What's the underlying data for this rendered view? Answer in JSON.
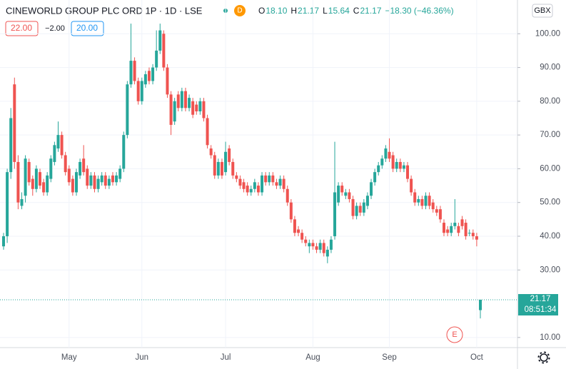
{
  "chart_data": {
    "type": "candlestick",
    "title": "CINEWORLD GROUP PLC ORD 1P · 1D · LSE",
    "interval_badge": "D",
    "ohlc_letters": [
      "O",
      "H",
      "L",
      "C"
    ],
    "ohlc_printed": [
      "18.10",
      "21.17",
      "15.64",
      "21.17"
    ],
    "change_printed": "−18.30 (−46.36%)",
    "buttons": [
      "22.00",
      "−2.00",
      "20.00"
    ],
    "currency": "GBX",
    "last_price_label": "21.17",
    "countdown": "08:51:34",
    "event_badge": "E",
    "up_color": "#26a69a",
    "down_color": "#ef5350",
    "ohlc": [
      [
        37,
        41,
        36,
        40
      ],
      [
        40,
        60,
        38,
        59
      ],
      [
        59,
        78,
        57,
        75
      ],
      [
        85,
        87,
        60,
        62
      ],
      [
        62,
        64,
        48,
        50
      ],
      [
        49,
        53,
        48,
        51
      ],
      [
        52,
        64,
        50,
        63
      ],
      [
        62,
        63,
        55,
        56
      ],
      [
        57,
        58,
        52,
        54
      ],
      [
        54,
        61,
        53,
        60
      ],
      [
        59,
        60,
        54,
        55
      ],
      [
        56,
        57,
        52,
        53
      ],
      [
        53,
        59,
        52,
        58
      ],
      [
        57,
        64,
        56,
        63
      ],
      [
        62,
        68,
        61,
        67
      ],
      [
        66,
        74,
        65,
        70
      ],
      [
        70,
        71,
        63,
        64
      ],
      [
        64,
        65,
        58,
        59
      ],
      [
        60,
        61,
        55,
        56
      ],
      [
        57,
        58,
        52,
        53
      ],
      [
        53,
        60,
        52,
        59
      ],
      [
        58,
        63,
        57,
        62
      ],
      [
        63,
        67,
        58,
        59
      ],
      [
        60,
        61,
        54,
        55
      ],
      [
        55,
        59,
        54,
        58
      ],
      [
        58,
        59,
        53,
        54
      ],
      [
        54,
        58,
        53,
        57
      ],
      [
        56,
        59,
        55,
        58
      ],
      [
        58,
        59,
        54,
        55
      ],
      [
        55,
        58,
        54,
        57
      ],
      [
        58,
        59,
        55,
        56
      ],
      [
        56,
        59,
        55,
        58
      ],
      [
        57,
        61,
        56,
        60
      ],
      [
        60,
        71,
        59,
        70
      ],
      [
        70,
        86,
        69,
        85
      ],
      [
        85,
        103,
        84,
        92
      ],
      [
        92,
        93,
        85,
        86
      ],
      [
        86,
        87,
        79,
        80
      ],
      [
        80,
        87,
        79,
        86
      ],
      [
        85,
        89,
        84,
        88
      ],
      [
        89,
        90,
        85,
        86
      ],
      [
        86,
        91,
        85,
        90
      ],
      [
        90,
        101,
        89,
        95
      ],
      [
        95,
        103,
        94,
        101
      ],
      [
        100,
        101,
        89,
        90
      ],
      [
        90,
        91,
        81,
        82
      ],
      [
        82,
        83,
        70,
        73
      ],
      [
        74,
        81,
        73,
        80
      ],
      [
        82,
        83,
        77,
        78
      ],
      [
        78,
        84,
        77,
        83
      ],
      [
        83,
        84,
        77,
        78
      ],
      [
        78,
        82,
        77,
        81
      ],
      [
        80,
        81,
        75,
        76
      ],
      [
        79,
        80,
        76,
        77
      ],
      [
        77,
        81,
        76,
        80
      ],
      [
        80,
        81,
        74,
        75
      ],
      [
        75,
        76,
        66,
        67
      ],
      [
        66,
        67,
        63,
        64
      ],
      [
        64,
        65,
        57,
        58
      ],
      [
        58,
        63,
        57,
        62
      ],
      [
        62,
        63,
        57,
        58
      ],
      [
        59,
        68,
        58,
        65
      ],
      [
        66,
        67,
        61,
        62
      ],
      [
        62,
        63,
        57,
        58
      ],
      [
        58,
        59,
        56,
        57
      ],
      [
        57,
        58,
        54,
        55
      ],
      [
        56,
        57,
        53,
        54
      ],
      [
        55,
        56,
        52,
        53
      ],
      [
        53,
        55,
        52,
        54
      ],
      [
        54,
        57,
        53,
        56
      ],
      [
        55,
        56,
        52,
        53
      ],
      [
        53,
        59,
        52,
        58
      ],
      [
        58,
        59,
        55,
        56
      ],
      [
        56,
        59,
        55,
        58
      ],
      [
        58,
        59,
        55,
        56
      ],
      [
        56,
        57,
        54,
        55
      ],
      [
        55,
        58,
        54,
        57
      ],
      [
        57,
        58,
        53,
        54
      ],
      [
        54,
        55,
        49,
        50
      ],
      [
        50,
        51,
        44,
        45
      ],
      [
        45,
        46,
        40,
        41
      ],
      [
        42,
        43,
        40,
        41
      ],
      [
        41,
        42,
        38,
        39
      ],
      [
        39,
        40,
        37,
        38
      ],
      [
        37,
        39,
        35,
        38
      ],
      [
        38,
        39,
        36,
        37
      ],
      [
        37,
        38,
        35,
        36
      ],
      [
        36,
        39,
        35,
        38
      ],
      [
        38,
        39,
        34,
        35
      ],
      [
        34,
        37,
        32,
        36
      ],
      [
        36,
        40,
        35,
        39
      ],
      [
        40,
        68,
        39,
        53
      ],
      [
        50,
        56,
        49,
        55
      ],
      [
        55,
        56,
        52,
        53
      ],
      [
        52,
        54,
        51,
        53
      ],
      [
        53,
        54,
        50,
        51
      ],
      [
        51,
        52,
        45,
        46
      ],
      [
        46,
        50,
        45,
        49
      ],
      [
        49,
        50,
        46,
        47
      ],
      [
        47,
        51,
        46,
        50
      ],
      [
        49,
        53,
        48,
        52
      ],
      [
        52,
        57,
        51,
        56
      ],
      [
        56,
        60,
        55,
        59
      ],
      [
        59,
        62,
        58,
        61
      ],
      [
        61,
        64,
        60,
        63
      ],
      [
        63,
        67,
        62,
        66
      ],
      [
        65,
        69,
        62,
        63
      ],
      [
        64,
        65,
        59,
        60
      ],
      [
        60,
        63,
        59,
        62
      ],
      [
        62,
        63,
        59,
        60
      ],
      [
        60,
        62,
        59,
        61
      ],
      [
        61,
        62,
        56,
        57
      ],
      [
        57,
        58,
        52,
        53
      ],
      [
        53,
        54,
        49,
        50
      ],
      [
        50,
        52,
        49,
        51
      ],
      [
        51,
        52,
        48,
        49
      ],
      [
        49,
        53,
        48,
        52
      ],
      [
        52,
        53,
        48,
        49
      ],
      [
        50,
        51,
        47,
        48
      ],
      [
        48,
        49,
        46,
        47
      ],
      [
        48,
        49,
        44,
        45
      ],
      [
        44,
        45,
        40,
        41
      ],
      [
        42,
        43,
        40,
        41
      ],
      [
        41,
        44,
        40,
        43
      ],
      [
        43,
        51,
        42,
        44
      ],
      [
        43,
        44,
        40,
        41
      ],
      [
        45,
        46,
        42,
        43
      ],
      [
        44,
        45,
        39,
        40
      ],
      [
        41,
        42,
        40,
        41
      ],
      [
        41,
        42,
        39,
        40
      ],
      [
        40,
        41,
        37,
        39
      ],
      [
        18.1,
        21.17,
        15.64,
        21.17
      ]
    ],
    "xticks": [
      {
        "value": 18,
        "label": "May"
      },
      {
        "value": 38,
        "label": "Jun"
      },
      {
        "value": 61,
        "label": "Jul"
      },
      {
        "value": 85,
        "label": "Aug"
      },
      {
        "value": 106,
        "label": "Sep"
      },
      {
        "value": 130,
        "label": "Oct"
      }
    ],
    "ylim": [
      7,
      110
    ],
    "yticks": [
      {
        "value": 10,
        "label": "10.00"
      },
      {
        "value": 30,
        "label": "30.00"
      },
      {
        "value": 40,
        "label": "40.00"
      },
      {
        "value": 50,
        "label": "50.00"
      },
      {
        "value": 60,
        "label": "60.00"
      },
      {
        "value": 70,
        "label": "70.00"
      },
      {
        "value": 80,
        "label": "80.00"
      },
      {
        "value": 90,
        "label": "90.00"
      },
      {
        "value": 100,
        "label": "100.00"
      }
    ],
    "grid": true
  }
}
